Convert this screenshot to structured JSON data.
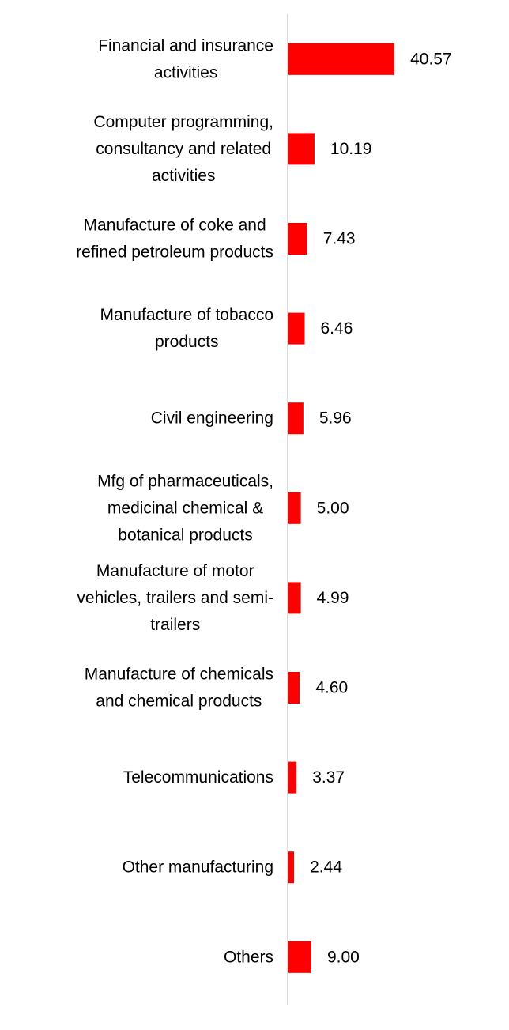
{
  "chart_data": {
    "type": "bar",
    "orientation": "horizontal",
    "categories": [
      [
        "Financial and insurance",
        "activities"
      ],
      [
        "Computer programming,",
        "consultancy and related",
        "activities"
      ],
      [
        "Manufacture of coke and",
        "refined petroleum products"
      ],
      [
        "Manufacture of tobacco",
        "products"
      ],
      [
        "Civil engineering"
      ],
      [
        "Mfg of pharmaceuticals,",
        "medicinal chemical &",
        "botanical products"
      ],
      [
        "Manufacture of motor",
        "vehicles, trailers and semi-",
        "trailers"
      ],
      [
        "Manufacture of chemicals",
        "and chemical products"
      ],
      [
        "Telecommunications"
      ],
      [
        "Other manufacturing"
      ],
      [
        "Others"
      ]
    ],
    "values": [
      40.57,
      10.19,
      7.43,
      6.46,
      5.96,
      5.0,
      4.99,
      4.6,
      3.37,
      2.44,
      9.0
    ],
    "value_labels": [
      "40.57",
      "10.19",
      "7.43",
      "6.46",
      "5.96",
      "5.00",
      "4.99",
      "4.60",
      "3.37",
      "2.44",
      "9.00"
    ],
    "xlim": [
      0,
      45
    ],
    "grid": false,
    "legend": "none",
    "colors": {
      "bar": "#ff0000",
      "axis": "#d9d9d9"
    }
  }
}
